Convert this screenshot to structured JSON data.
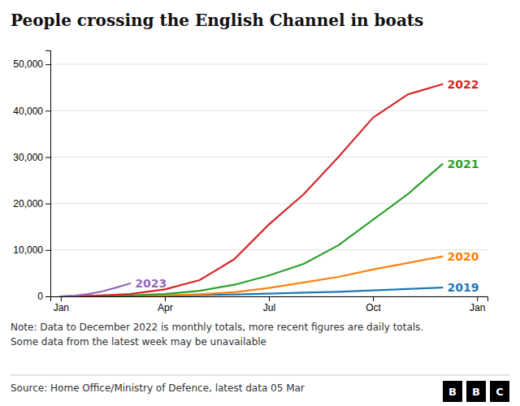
{
  "chart_data": {
    "type": "line",
    "title": "People crossing the English Channel in boats",
    "note": [
      "Note: Data to December 2022 is monthly totals, more recent figures are daily totals.",
      "Some data from the latest week may be unavailable"
    ],
    "source": "Source: Home Office/Ministry of Defence, latest data 05 Mar",
    "logo": [
      "B",
      "B",
      "C"
    ],
    "xlim": [
      -0.3,
      12.3
    ],
    "xticks": [
      {
        "value": 0,
        "label": "Jan"
      },
      {
        "value": 3,
        "label": "Apr"
      },
      {
        "value": 6,
        "label": "Jul"
      },
      {
        "value": 9,
        "label": "Oct"
      },
      {
        "value": 12,
        "label": "Jan"
      }
    ],
    "ylim": [
      0,
      53000
    ],
    "yticks": [
      0,
      {
        "value": 10000,
        "label": "10,000"
      },
      {
        "value": 20000,
        "label": "20,000"
      },
      {
        "value": 30000,
        "label": "30,000"
      },
      {
        "value": 40000,
        "label": "40,000"
      },
      {
        "value": 50000,
        "label": "50,000"
      }
    ],
    "grid": "y",
    "series": [
      {
        "name": "2019",
        "x": [
          0,
          1,
          2,
          3,
          4,
          5,
          6,
          7,
          8,
          9,
          10,
          11
        ],
        "values": [
          0,
          50,
          80,
          150,
          280,
          400,
          600,
          800,
          1000,
          1300,
          1600,
          1900
        ]
      },
      {
        "name": "2020",
        "x": [
          0,
          1,
          2,
          3,
          4,
          5,
          6,
          7,
          8,
          9,
          10,
          11
        ],
        "values": [
          0,
          30,
          80,
          200,
          450,
          900,
          1800,
          3000,
          4200,
          5800,
          7200,
          8600
        ]
      },
      {
        "name": "2021",
        "x": [
          0,
          1,
          2,
          3,
          4,
          5,
          6,
          7,
          8,
          9,
          10,
          11
        ],
        "values": [
          0,
          80,
          200,
          500,
          1200,
          2500,
          4500,
          7000,
          11000,
          16500,
          22000,
          28500
        ]
      },
      {
        "name": "2022",
        "x": [
          0,
          1,
          2,
          3,
          4,
          5,
          6,
          7,
          8,
          9,
          10,
          11
        ],
        "values": [
          0,
          150,
          500,
          1500,
          3500,
          8000,
          15500,
          22000,
          30000,
          38500,
          43500,
          45700
        ]
      },
      {
        "name": "2023",
        "x": [
          0,
          0.4,
          0.8,
          1.2,
          1.6,
          2.0
        ],
        "values": [
          0,
          150,
          500,
          1100,
          1900,
          2800
        ]
      }
    ]
  }
}
